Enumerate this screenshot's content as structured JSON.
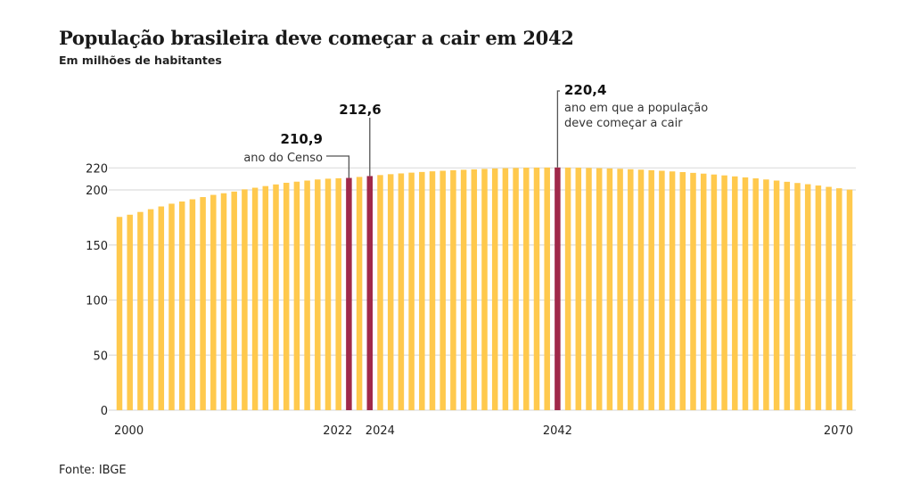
{
  "chart_data": {
    "type": "bar",
    "title": "População brasileira deve começar a cair em 2042",
    "subtitle": "Em milhões de habitantes",
    "source": "Fonte: IBGE",
    "xlabel": "",
    "ylabel": "",
    "ylim": [
      0,
      220
    ],
    "yticks": [
      "0",
      "50",
      "100",
      "150",
      "200",
      "220"
    ],
    "ytick_values": [
      0,
      50,
      100,
      150,
      200,
      220
    ],
    "xtick_labels": [
      "2000",
      "2022",
      "2024",
      "2042",
      "2070"
    ],
    "xtick_years": [
      2000,
      2022,
      2024,
      2042,
      2070
    ],
    "grid": true,
    "colors": {
      "bar": "#FFC94D",
      "highlight": "#A0294A",
      "grid": "#dddddd",
      "leader": "#555555"
    },
    "x": [
      2000,
      2001,
      2002,
      2003,
      2004,
      2005,
      2006,
      2007,
      2008,
      2009,
      2010,
      2011,
      2012,
      2013,
      2014,
      2015,
      2016,
      2017,
      2018,
      2019,
      2020,
      2021,
      2022,
      2023,
      2024,
      2025,
      2026,
      2027,
      2028,
      2029,
      2030,
      2031,
      2032,
      2033,
      2034,
      2035,
      2036,
      2037,
      2038,
      2039,
      2040,
      2041,
      2042,
      2043,
      2044,
      2045,
      2046,
      2047,
      2048,
      2049,
      2050,
      2051,
      2052,
      2053,
      2054,
      2055,
      2056,
      2057,
      2058,
      2059,
      2060,
      2061,
      2062,
      2063,
      2064,
      2065,
      2066,
      2067,
      2068,
      2069,
      2070
    ],
    "values": [
      175.5,
      177.5,
      180,
      182.5,
      185,
      187.5,
      189.5,
      191.5,
      193.5,
      195.5,
      197,
      198.5,
      200.5,
      202,
      203.5,
      205,
      206.5,
      207.5,
      208.5,
      209.5,
      210.2,
      210.6,
      210.9,
      211.8,
      212.6,
      213.5,
      214.3,
      215,
      215.7,
      216.3,
      216.9,
      217.4,
      217.9,
      218.3,
      218.7,
      219.1,
      219.5,
      219.8,
      220,
      220.2,
      220.3,
      220.35,
      220.4,
      220.3,
      220.2,
      220,
      219.8,
      219.5,
      219.2,
      218.8,
      218.4,
      217.9,
      217.4,
      216.8,
      216.2,
      215.5,
      214.8,
      214,
      213.2,
      212.3,
      211.4,
      210.5,
      209.5,
      208.5,
      207.4,
      206.3,
      205.2,
      204,
      202.8,
      201.5,
      200.3
    ],
    "highlights": [
      {
        "year": 2022,
        "value_label": "210,9",
        "note": "ano do Censo"
      },
      {
        "year": 2024,
        "value_label": "212,6",
        "note": ""
      },
      {
        "year": 2042,
        "value_label": "220,4",
        "note_lines": [
          "ano em que a população",
          "deve começar a cair"
        ]
      }
    ]
  }
}
